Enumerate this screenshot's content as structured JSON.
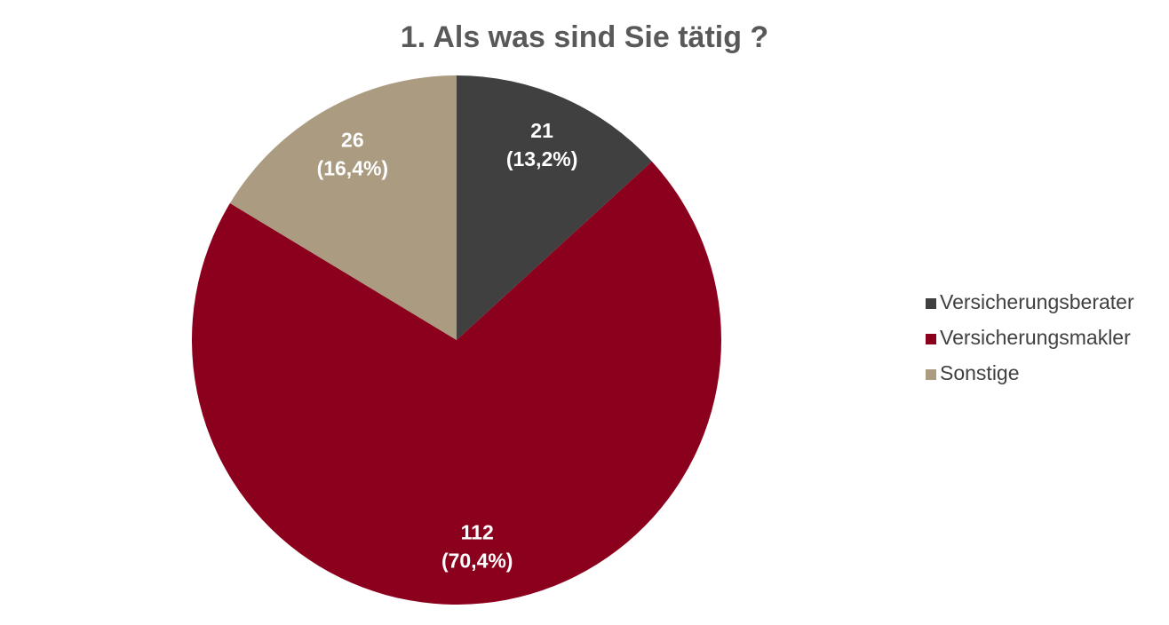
{
  "chart_data": {
    "type": "pie",
    "title": "1. Als was sind Sie tätig ?",
    "categories": [
      "Versicherungsberater",
      "Versicherungsmakler",
      "Sonstige"
    ],
    "values": [
      21,
      112,
      26
    ],
    "percentages": [
      13.2,
      70.4,
      16.4
    ],
    "percentage_labels": [
      "(13,2%)",
      "(70,4%)",
      "(16,4%)"
    ],
    "colors": [
      "#404040",
      "#8b001c",
      "#ab9b80"
    ],
    "legend": "right"
  }
}
